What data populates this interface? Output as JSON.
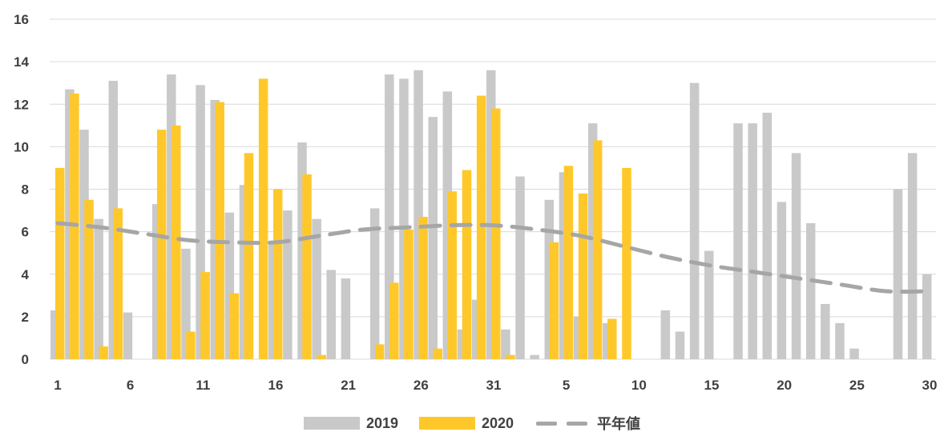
{
  "chart_data": {
    "type": "bar",
    "title": "",
    "xlabel": "",
    "ylabel": "",
    "ylim": [
      0,
      16
    ],
    "yticks": [
      0,
      2,
      4,
      6,
      8,
      10,
      12,
      14,
      16
    ],
    "xtick_labels": [
      "1",
      "6",
      "11",
      "16",
      "21",
      "26",
      "31",
      "5",
      "10",
      "15",
      "20",
      "25",
      "30"
    ],
    "xtick_days": [
      1,
      6,
      11,
      16,
      21,
      26,
      31,
      36,
      41,
      46,
      51,
      56,
      61
    ],
    "x_range": [
      1,
      61
    ],
    "grid": true,
    "legend_position": "bottom",
    "series": [
      {
        "name": "2019",
        "type": "bar",
        "color": "#c9c9c9",
        "values": [
          2.3,
          12.7,
          10.8,
          6.6,
          13.1,
          2.2,
          0,
          7.3,
          13.4,
          5.2,
          12.9,
          12.2,
          6.9,
          8.2,
          0,
          5.4,
          7.0,
          10.2,
          6.6,
          4.2,
          3.8,
          0,
          7.1,
          13.4,
          13.2,
          13.6,
          11.4,
          12.6,
          1.4,
          2.8,
          13.6,
          1.4,
          8.6,
          0.2,
          7.5,
          8.8,
          2.0,
          11.1,
          1.7,
          0,
          0,
          0,
          2.3,
          1.3,
          13.0,
          5.1,
          0,
          11.1,
          11.1,
          11.6,
          7.4,
          9.7,
          6.4,
          2.6,
          1.7,
          0.5,
          0,
          0,
          8.0,
          9.7,
          4.0
        ]
      },
      {
        "name": "2020",
        "type": "bar",
        "color": "#ffc82a",
        "values": [
          9.0,
          12.5,
          7.5,
          0.6,
          7.1,
          0,
          0,
          10.8,
          11.0,
          1.3,
          4.1,
          12.1,
          3.1,
          9.7,
          13.2,
          8.0,
          0,
          8.7,
          0.2,
          0,
          0,
          0,
          0.7,
          3.6,
          6.1,
          6.7,
          0.5,
          7.9,
          8.9,
          12.4,
          11.8,
          0.2,
          0,
          0,
          5.5,
          9.1,
          7.8,
          10.3,
          1.9,
          9.0
        ]
      },
      {
        "name": "平年値",
        "type": "line",
        "style": "dashed",
        "color": "#a6a6a6",
        "x": [
          1,
          4,
          7,
          10,
          13,
          16,
          19,
          22,
          25,
          28,
          31,
          34,
          37,
          40,
          43,
          46,
          49,
          52,
          55,
          58,
          61
        ],
        "values": [
          6.4,
          6.2,
          5.9,
          5.6,
          5.5,
          5.5,
          5.8,
          6.1,
          6.2,
          6.3,
          6.3,
          6.1,
          5.8,
          5.3,
          4.8,
          4.4,
          4.1,
          3.8,
          3.5,
          3.2,
          3.2
        ]
      }
    ]
  },
  "legend": {
    "items": [
      {
        "label": "2019",
        "color": "#c9c9c9",
        "kind": "bar"
      },
      {
        "label": "2020",
        "color": "#ffc82a",
        "kind": "bar"
      },
      {
        "label": "平年値",
        "color": "#a6a6a6",
        "kind": "dashed-line"
      }
    ]
  }
}
